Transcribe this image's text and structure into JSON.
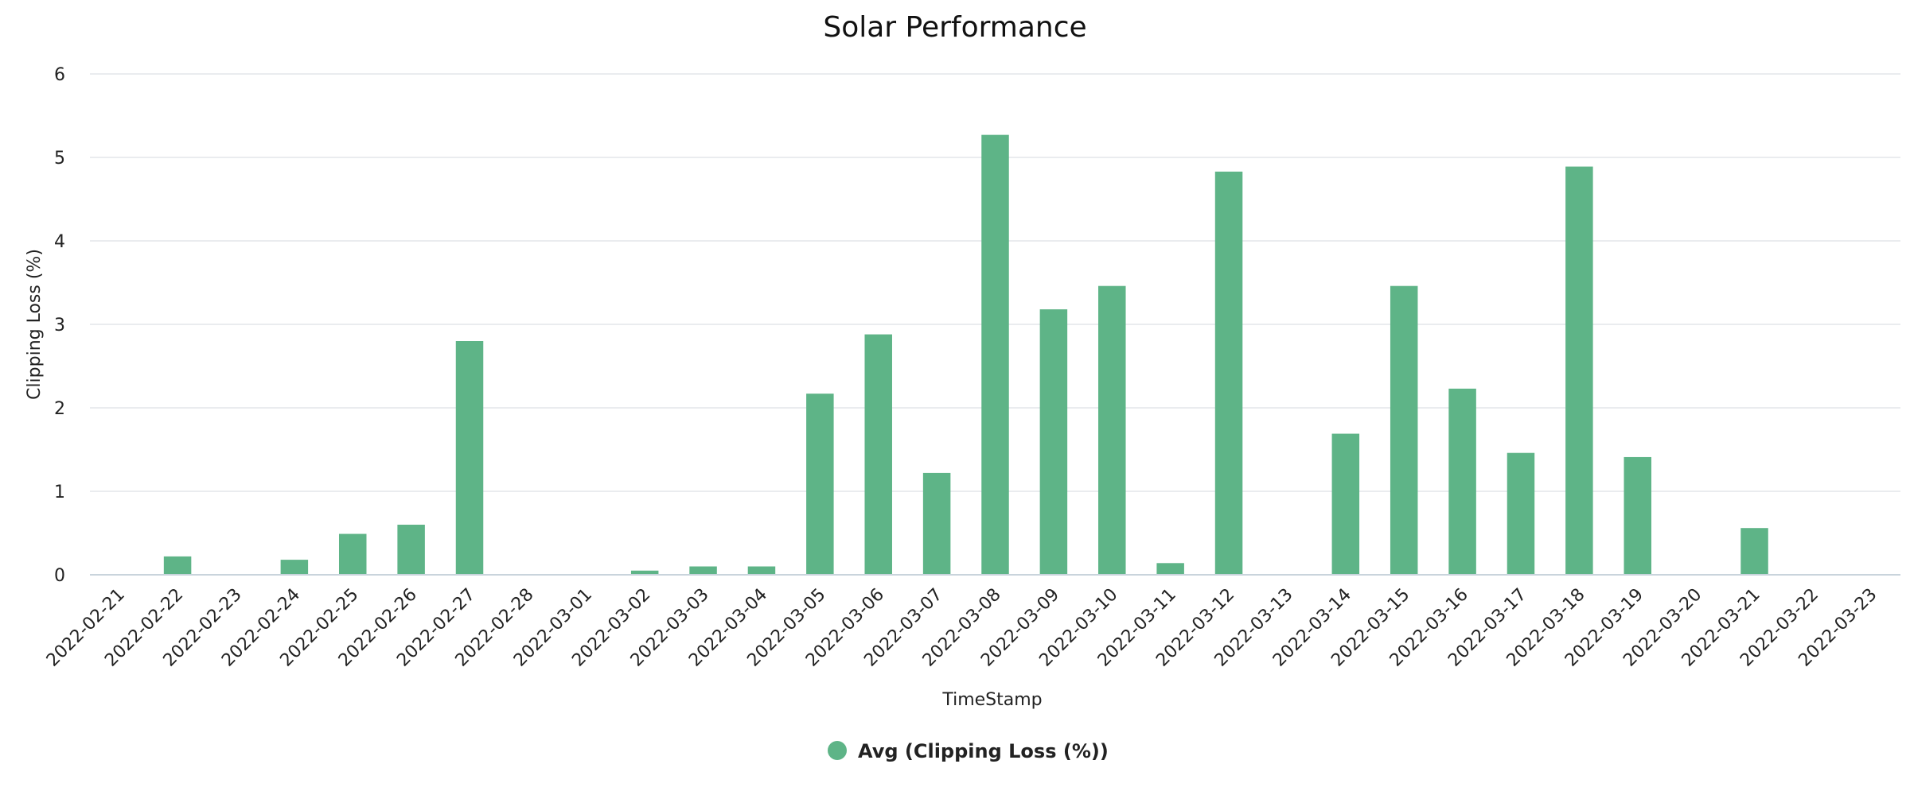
{
  "chart_data": {
    "type": "bar",
    "title": "Solar Performance",
    "xlabel": "TimeStamp",
    "ylabel": "Clipping Loss (%)",
    "ylim": [
      0,
      6
    ],
    "yticks": [
      "0",
      "1",
      "2",
      "3",
      "4",
      "5",
      "6"
    ],
    "grid": true,
    "legend_position": "bottom-center",
    "color": "#5eb487",
    "categories": [
      "2022-02-21",
      "2022-02-22",
      "2022-02-23",
      "2022-02-24",
      "2022-02-25",
      "2022-02-26",
      "2022-02-27",
      "2022-02-28",
      "2022-03-01",
      "2022-03-02",
      "2022-03-03",
      "2022-03-04",
      "2022-03-05",
      "2022-03-06",
      "2022-03-07",
      "2022-03-08",
      "2022-03-09",
      "2022-03-10",
      "2022-03-11",
      "2022-03-12",
      "2022-03-13",
      "2022-03-14",
      "2022-03-15",
      "2022-03-16",
      "2022-03-17",
      "2022-03-18",
      "2022-03-19",
      "2022-03-20",
      "2022-03-21",
      "2022-03-22",
      "2022-03-23"
    ],
    "series": [
      {
        "name": "Avg (Clipping Loss (%))",
        "values": [
          0,
          0.22,
          0,
          0.18,
          0.49,
          0.6,
          2.8,
          0,
          0,
          0.05,
          0.1,
          0.1,
          2.17,
          2.88,
          1.22,
          5.27,
          3.18,
          3.46,
          0.14,
          4.83,
          0,
          1.69,
          3.46,
          2.23,
          1.46,
          4.89,
          1.41,
          0,
          0.56,
          0,
          0
        ]
      }
    ]
  }
}
